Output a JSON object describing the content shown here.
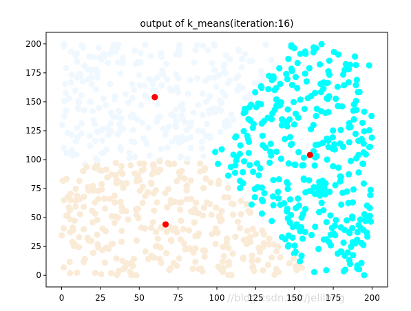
{
  "chart_data": {
    "type": "scatter",
    "title": "output of k_means(iteration:16)",
    "xlabel": "",
    "ylabel": "",
    "xlim": [
      -10,
      210
    ],
    "ylim": [
      -10,
      210
    ],
    "xticks": [
      0,
      25,
      50,
      75,
      100,
      125,
      150,
      175,
      200
    ],
    "yticks": [
      0,
      25,
      50,
      75,
      100,
      125,
      150,
      175,
      200
    ],
    "grid": false,
    "legend": "none",
    "seed": 7,
    "clusters": [
      {
        "color": "#F0F8FF",
        "region": "top-left",
        "approx_count": 250
      },
      {
        "color": "#FAEBD7",
        "region": "bottom-left",
        "approx_count": 350
      },
      {
        "color": "#00FFFF",
        "region": "right",
        "approx_count": 400
      }
    ],
    "centroids": {
      "color": "#FF0000",
      "points": [
        {
          "x": 60,
          "y": 154
        },
        {
          "x": 67,
          "y": 44
        },
        {
          "x": 160,
          "y": 104
        }
      ]
    }
  },
  "watermark": "//blog.csdn.net/jelilong"
}
